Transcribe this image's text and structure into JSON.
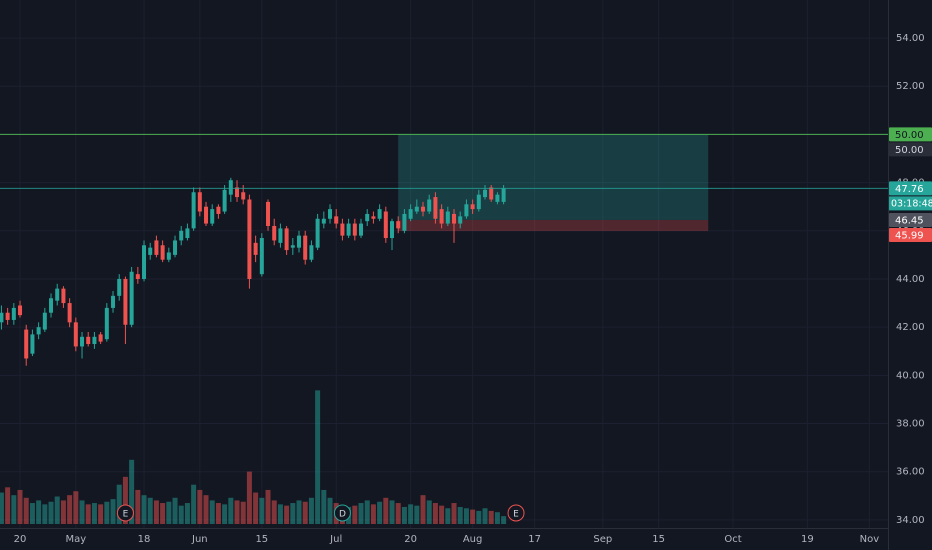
{
  "chart_data": {
    "type": "candlestick",
    "x": [
      -3,
      -2,
      -1,
      0,
      1,
      2,
      3,
      4,
      5,
      6,
      7,
      8,
      9,
      10,
      11,
      12,
      13,
      14,
      15,
      16,
      17,
      18,
      19,
      20,
      21,
      22,
      23,
      24,
      25,
      26,
      27,
      28,
      29,
      30,
      31,
      32,
      33,
      34,
      35,
      36,
      37,
      38,
      39,
      40,
      41,
      42,
      43,
      44,
      45,
      46,
      47,
      48,
      49,
      50,
      51,
      52,
      53,
      54,
      55,
      56,
      57,
      58,
      59,
      60,
      61,
      62,
      63,
      64,
      65,
      66,
      67,
      68,
      69,
      70,
      71,
      72,
      73,
      74,
      75,
      76,
      77,
      78
    ],
    "open": [
      42.2,
      42.6,
      42.3,
      42.9,
      41.9,
      40.9,
      41.7,
      41.9,
      42.6,
      43.1,
      43.6,
      43.0,
      42.2,
      41.2,
      41.6,
      41.3,
      41.7,
      41.5,
      42.8,
      43.3,
      44.0,
      42.1,
      44.2,
      44.0,
      45.0,
      45.6,
      45.4,
      44.8,
      45.0,
      45.6,
      45.7,
      46.1,
      47.6,
      47.0,
      46.3,
      47.0,
      46.8,
      47.5,
      47.8,
      47.6,
      47.3,
      45.5,
      44.2,
      47.2,
      46.2,
      45.5,
      46.1,
      45.3,
      45.3,
      45.8,
      44.8,
      45.3,
      46.3,
      46.5,
      46.6,
      46.3,
      45.8,
      46.3,
      45.8,
      46.4,
      46.6,
      46.5,
      46.8,
      45.7,
      46.4,
      46.0,
      46.5,
      46.8,
      47.0,
      46.8,
      47.4,
      46.9,
      46.3,
      46.7,
      46.3,
      46.6,
      47.1,
      46.9,
      47.4,
      47.8,
      47.2,
      47.2
    ],
    "high": [
      42.9,
      42.8,
      43.0,
      43.1,
      42.1,
      41.9,
      42.2,
      42.8,
      43.4,
      43.8,
      43.7,
      43.2,
      42.4,
      41.8,
      41.8,
      41.8,
      41.8,
      43.0,
      43.5,
      44.2,
      44.1,
      44.5,
      44.5,
      45.6,
      45.5,
      45.8,
      45.6,
      45.3,
      45.8,
      46.2,
      46.3,
      47.8,
      47.8,
      47.2,
      47.1,
      47.1,
      47.9,
      48.2,
      48.1,
      47.9,
      47.5,
      45.8,
      45.9,
      47.3,
      46.5,
      46.3,
      46.2,
      45.7,
      46.0,
      46.0,
      45.6,
      46.7,
      46.8,
      47.1,
      46.9,
      46.5,
      46.5,
      46.5,
      46.5,
      46.9,
      46.8,
      47.1,
      47.0,
      46.5,
      46.6,
      46.9,
      47.1,
      47.3,
      47.2,
      47.5,
      47.6,
      47.1,
      47.0,
      46.9,
      46.8,
      47.3,
      47.3,
      47.7,
      47.9,
      47.9,
      47.6,
      47.9
    ],
    "low": [
      41.9,
      42.1,
      42.1,
      42.4,
      40.4,
      40.8,
      41.5,
      41.8,
      42.4,
      42.9,
      42.8,
      42.0,
      41.0,
      40.7,
      41.2,
      41.1,
      41.3,
      41.4,
      42.6,
      43.1,
      41.3,
      42.0,
      43.8,
      43.9,
      44.8,
      44.9,
      44.7,
      44.7,
      44.9,
      45.4,
      45.6,
      46.0,
      46.6,
      46.2,
      46.2,
      46.5,
      46.7,
      47.2,
      47.2,
      47.1,
      43.6,
      44.7,
      44.1,
      46.0,
      45.4,
      45.3,
      45.0,
      45.0,
      45.1,
      44.6,
      44.7,
      45.2,
      46.1,
      46.3,
      46.1,
      45.6,
      45.7,
      45.6,
      45.7,
      46.2,
      46.3,
      46.4,
      45.5,
      45.2,
      45.9,
      45.9,
      46.4,
      46.7,
      46.6,
      46.7,
      46.3,
      46.1,
      46.2,
      45.5,
      46.1,
      46.5,
      46.7,
      46.8,
      47.3,
      47.2,
      47.1,
      47.1
    ],
    "close": [
      42.6,
      42.3,
      42.8,
      42.5,
      40.7,
      41.7,
      42.0,
      42.6,
      43.2,
      43.6,
      43.0,
      42.2,
      41.2,
      41.6,
      41.3,
      41.6,
      41.4,
      42.8,
      43.3,
      44.0,
      42.1,
      44.3,
      44.0,
      45.4,
      45.3,
      45.0,
      44.8,
      45.1,
      45.6,
      46.0,
      46.1,
      47.6,
      46.8,
      46.3,
      46.9,
      46.7,
      47.7,
      48.1,
      47.4,
      47.3,
      44.0,
      45.0,
      45.7,
      46.2,
      45.6,
      46.1,
      45.2,
      45.4,
      45.8,
      44.8,
      45.4,
      46.5,
      46.5,
      46.9,
      46.3,
      45.8,
      46.3,
      45.8,
      46.3,
      46.7,
      46.5,
      46.9,
      45.7,
      46.4,
      46.1,
      46.7,
      46.9,
      47.0,
      46.8,
      47.3,
      46.5,
      46.3,
      46.8,
      46.3,
      46.6,
      47.1,
      46.9,
      47.5,
      47.7,
      47.3,
      47.5,
      47.76
    ],
    "volume": [
      24,
      28,
      22,
      26,
      20,
      16,
      18,
      15,
      17,
      21,
      18,
      22,
      25,
      18,
      15,
      16,
      15,
      17,
      19,
      30,
      36,
      49,
      26,
      22,
      20,
      18,
      16,
      17,
      20,
      14,
      16,
      30,
      26,
      22,
      18,
      16,
      15,
      20,
      18,
      17,
      40,
      24,
      20,
      26,
      18,
      15,
      14,
      16,
      18,
      17,
      20,
      102,
      26,
      20,
      16,
      14,
      13,
      14,
      16,
      18,
      15,
      17,
      20,
      18,
      16,
      13,
      15,
      14,
      22,
      18,
      16,
      14,
      12,
      16,
      13,
      12,
      11,
      10,
      12,
      10,
      9,
      6
    ],
    "up_color": "#26a69a",
    "down_color": "#ef5350",
    "xlim": [
      -3.23,
      140
    ],
    "xticks": [
      {
        "value": 0,
        "label": "20"
      },
      {
        "value": 9,
        "label": "May"
      },
      {
        "value": 20,
        "label": "18"
      },
      {
        "value": 29,
        "label": "Jun"
      },
      {
        "value": 39,
        "label": "15"
      },
      {
        "value": 51,
        "label": "Jul"
      },
      {
        "value": 63,
        "label": "20"
      },
      {
        "value": 73,
        "label": "Aug"
      },
      {
        "value": 83,
        "label": "17"
      },
      {
        "value": 94,
        "label": "Sep"
      },
      {
        "value": 103,
        "label": "15"
      },
      {
        "value": 115,
        "label": "Oct"
      },
      {
        "value": 127,
        "label": "19"
      },
      {
        "value": 137,
        "label": "Nov"
      }
    ],
    "ylim": [
      33.83,
      55.58
    ],
    "yticks": [
      {
        "value": 34,
        "label": "34.00"
      },
      {
        "value": 36,
        "label": "36.00"
      },
      {
        "value": 38,
        "label": "38.00"
      },
      {
        "value": 40,
        "label": "40.00"
      },
      {
        "value": 42,
        "label": "42.00"
      },
      {
        "value": 44,
        "label": "44.00"
      },
      {
        "value": 46,
        "label": "46.00"
      },
      {
        "value": 48,
        "label": "48.00"
      },
      {
        "value": 50,
        "label": "50.00"
      },
      {
        "value": 52,
        "label": "52.00"
      },
      {
        "value": 54,
        "label": "54.00"
      }
    ],
    "volume_ylim": [
      0,
      400
    ],
    "grid": true,
    "hline": {
      "value": 50,
      "label": "50.00",
      "color": "#4caf50"
    },
    "last_price": {
      "value": 47.76,
      "countdown": "03:18:48",
      "color": "#26a69a"
    },
    "position": {
      "start": 61,
      "end": 111,
      "target": {
        "value": 50,
        "label": "50.00"
      },
      "entry": 46.45,
      "stop": 45.99
    },
    "events": [
      {
        "label": "E",
        "x": 17,
        "color": "#ef5350"
      },
      {
        "label": "D",
        "x": 52,
        "color": "#26a69a"
      },
      {
        "label": "E",
        "x": 80,
        "color": "#ef5350"
      }
    ]
  }
}
